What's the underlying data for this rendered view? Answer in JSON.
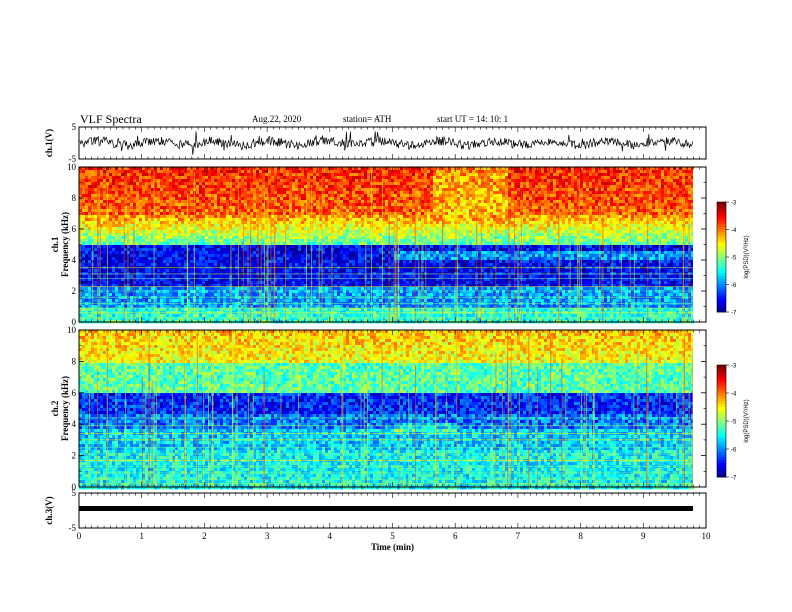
{
  "header": {
    "title": "VLF Spectra",
    "date": "Aug.22, 2020",
    "station": "station= ATH",
    "start": "start  UT =   14: 10: 1"
  },
  "chart_data": [
    {
      "type": "line",
      "name": "ch1-waveform",
      "ylabel": "ch.1(V)",
      "ylim": [
        -5,
        5
      ],
      "yticks": [
        "5",
        "-5"
      ],
      "xlim": [
        0,
        10
      ]
    },
    {
      "type": "heatmap",
      "name": "ch1-spectrogram",
      "ylabel": "ch.1  Frequency  (kHz)",
      "ylim": [
        0,
        10
      ],
      "yticks": [
        "0",
        "2",
        "4",
        "6",
        "8",
        "10"
      ],
      "xlim": [
        0,
        10
      ],
      "colorbar": {
        "label": "log(PSD)(V²/Hz)",
        "range": [
          -7,
          -3
        ],
        "ticks": [
          "-3",
          "-4",
          "-5",
          "-6",
          "-7"
        ]
      }
    },
    {
      "type": "heatmap",
      "name": "ch2-spectrogram",
      "ylabel": "ch.2  Frequency  (kHz)",
      "ylim": [
        0,
        10
      ],
      "yticks": [
        "0",
        "2",
        "4",
        "6",
        "8",
        "10"
      ],
      "xlim": [
        0,
        10
      ],
      "colorbar": {
        "label": "log(PSD)(V²/Hz)",
        "range": [
          -7,
          -3
        ],
        "ticks": [
          "-3",
          "-4",
          "-5",
          "-6",
          "-7"
        ]
      }
    },
    {
      "type": "line",
      "name": "ch3-waveform",
      "ylabel": "ch.3(V)",
      "ylim": [
        -5,
        5
      ],
      "yticks": [
        "5",
        "-5"
      ],
      "xlim": [
        0,
        10
      ],
      "xlabel": "Time  (min)",
      "xticks": [
        "0",
        "1",
        "2",
        "3",
        "4",
        "5",
        "6",
        "7",
        "8",
        "9",
        "10"
      ]
    }
  ],
  "colors": {
    "axis": "#000000",
    "trace": "#000000"
  }
}
